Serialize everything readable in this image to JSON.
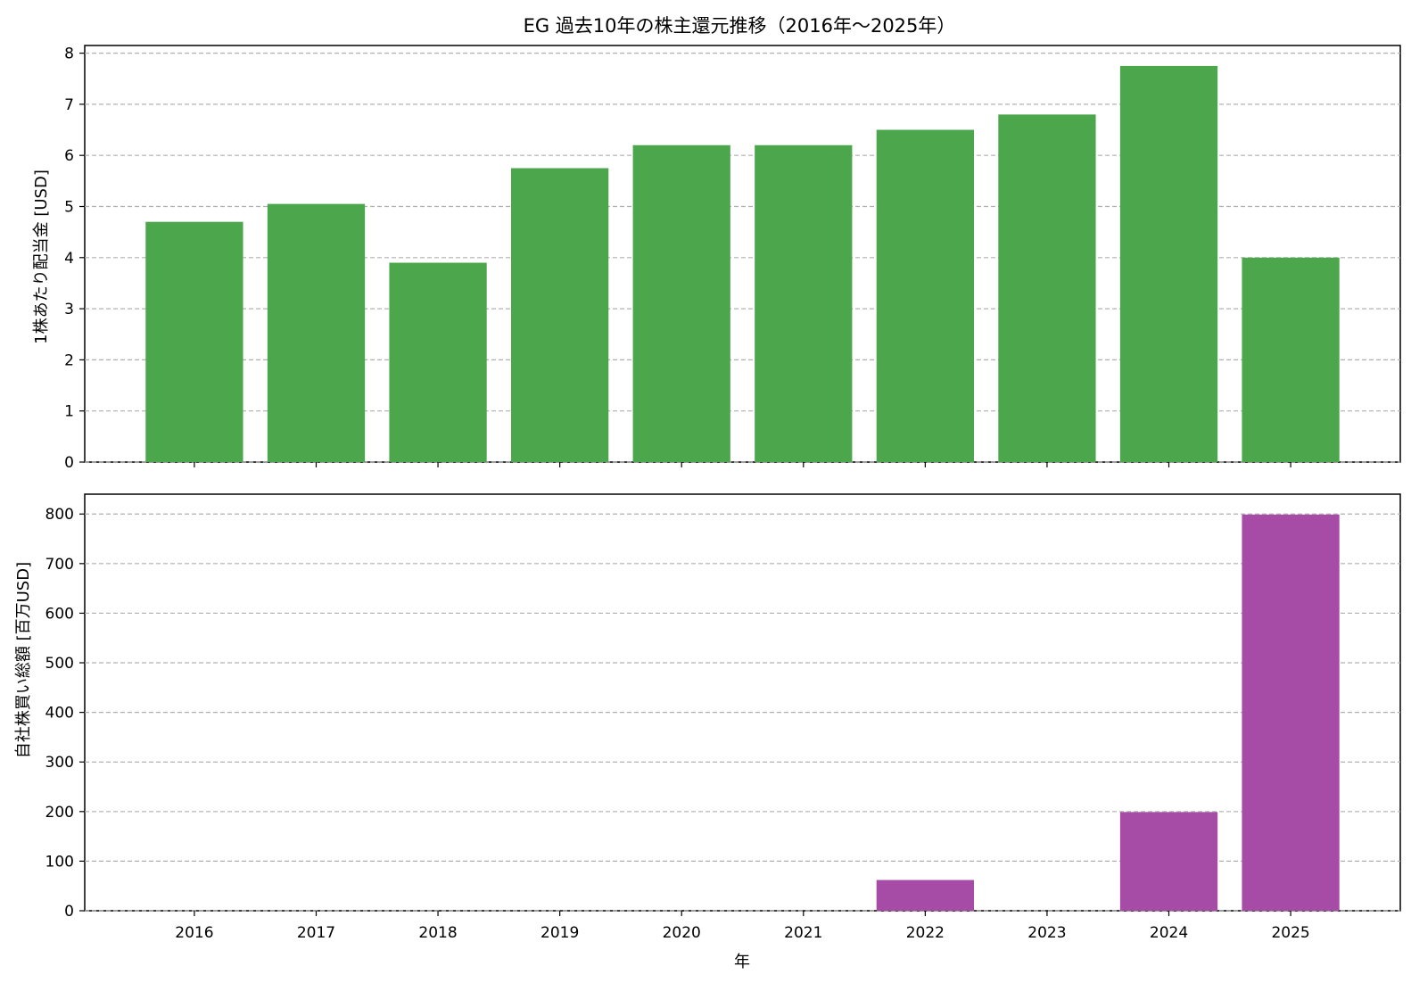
{
  "chart_data": [
    {
      "type": "bar",
      "title": "EG 過去10年の株主還元推移（2016年～2025年）",
      "ylabel": "1株あたり配当金 [USD]",
      "xlabel": "",
      "categories": [
        "2016",
        "2017",
        "2018",
        "2019",
        "2020",
        "2021",
        "2022",
        "2023",
        "2024",
        "2025"
      ],
      "values": [
        4.7,
        5.05,
        3.9,
        5.75,
        6.2,
        6.2,
        6.5,
        6.8,
        7.75,
        4.0
      ],
      "ylim": [
        0,
        8.15
      ],
      "yticks": [
        0,
        1,
        2,
        3,
        4,
        5,
        6,
        7,
        8
      ],
      "color": "#4ca64c",
      "grid": "y-dashed",
      "show_x_tick_labels": false
    },
    {
      "type": "bar",
      "title": "",
      "ylabel": "自社株買い総額 [百万USD]",
      "xlabel": "年",
      "categories": [
        "2016",
        "2017",
        "2018",
        "2019",
        "2020",
        "2021",
        "2022",
        "2023",
        "2024",
        "2025"
      ],
      "values": [
        0,
        0,
        0,
        0,
        0,
        0,
        62,
        0,
        199,
        799
      ],
      "ylim": [
        0,
        840
      ],
      "yticks": [
        0,
        100,
        200,
        300,
        400,
        500,
        600,
        700,
        800
      ],
      "color": "#a64ca6",
      "grid": "y-dashed",
      "show_x_tick_labels": true
    }
  ]
}
